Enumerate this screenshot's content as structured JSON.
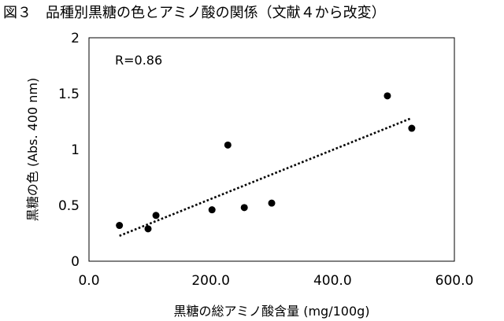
{
  "figure": {
    "title": "図３　品種別黒糖の色とアミノ酸の関係（文献４から改変）"
  },
  "chart_data": {
    "type": "scatter",
    "xlabel": "黒糖の総アミノ酸含量 (mg/100g)",
    "ylabel": "黒糖の色 (Abs. 400 nm)",
    "xlim": [
      0,
      600
    ],
    "ylim": [
      0,
      2
    ],
    "x_ticks": [
      0,
      200,
      400,
      600
    ],
    "x_tick_labels": [
      "0.0",
      "200.0",
      "400.0",
      "600.0"
    ],
    "y_ticks": [
      0,
      0.5,
      1,
      1.5,
      2
    ],
    "y_tick_labels": [
      "0",
      "0.5",
      "1",
      "1.5",
      "2"
    ],
    "grid": false,
    "annotation": "R=0.86",
    "points": [
      {
        "x": 50,
        "y": 0.32
      },
      {
        "x": 97,
        "y": 0.29
      },
      {
        "x": 110,
        "y": 0.41
      },
      {
        "x": 202,
        "y": 0.46
      },
      {
        "x": 228,
        "y": 1.04
      },
      {
        "x": 255,
        "y": 0.48
      },
      {
        "x": 300,
        "y": 0.52
      },
      {
        "x": 490,
        "y": 1.48
      },
      {
        "x": 530,
        "y": 1.19
      }
    ],
    "trendline": {
      "style": "dotted",
      "x_range": [
        50,
        530
      ],
      "slope": 0.002197,
      "intercept": 0.1173
    }
  }
}
